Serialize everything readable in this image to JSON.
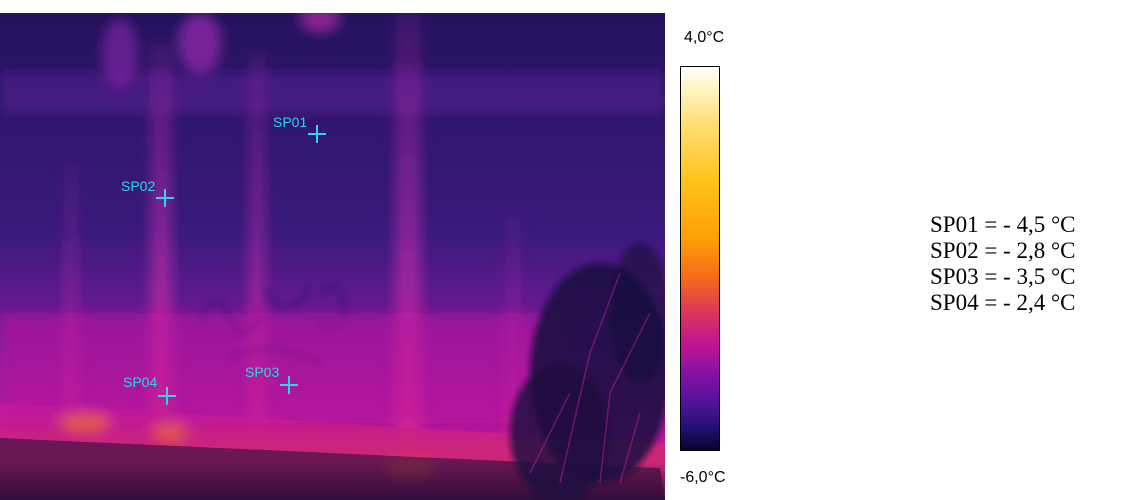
{
  "image": {
    "description_icon": "thermal-image",
    "markers": [
      {
        "label": "SP01"
      },
      {
        "label": "SP02"
      },
      {
        "label": "SP03"
      },
      {
        "label": "SP04"
      }
    ]
  },
  "scale": {
    "max_label": "4,0°C",
    "min_label": "-6,0°C",
    "palette": [
      "#ffffff",
      "#ffc21a",
      "#f56a1a",
      "#c2148f",
      "#55139e",
      "#090430"
    ]
  },
  "readings": [
    {
      "text": "SP01 = - 4,5 °C"
    },
    {
      "text": "SP02 = - 2,8 °C"
    },
    {
      "text": "SP03 = - 3,5 °C"
    },
    {
      "text": "SP04 = - 2,4 °C"
    }
  ]
}
